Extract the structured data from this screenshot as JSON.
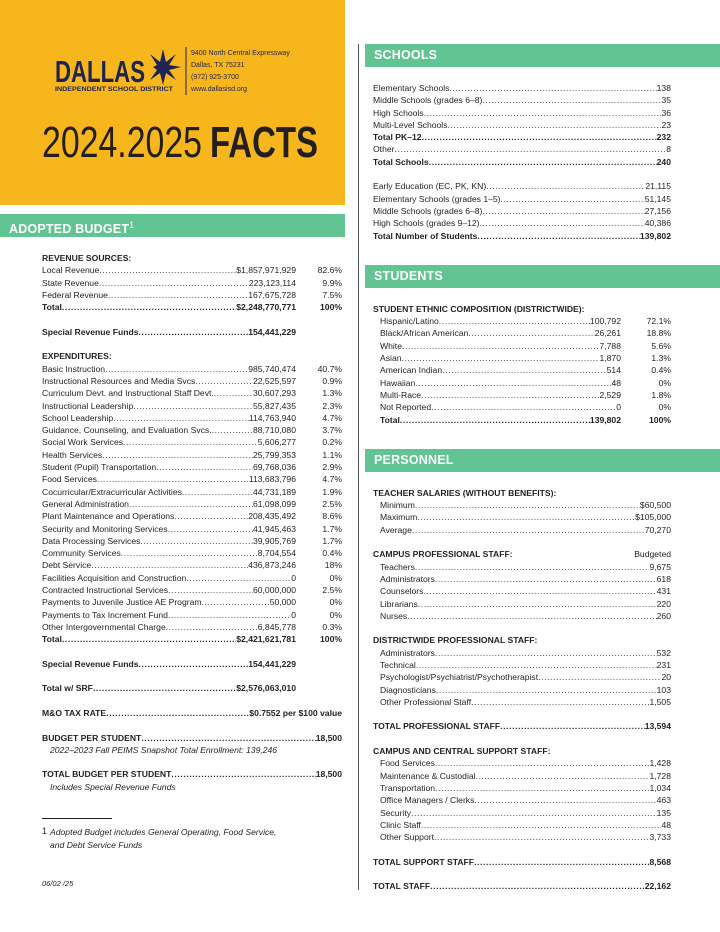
{
  "header": {
    "logo_name": "DALLAS",
    "logo_sub": "INDEPENDENT SCHOOL DISTRICT",
    "address": [
      "9400 North Central Expressway",
      "Dallas, TX 75231",
      "(972) 925-3700",
      "www.dallasisd.org"
    ],
    "title_year": "2024.2025",
    "title_word": "FACTS"
  },
  "budget": {
    "heading": "ADOPTED BUDGET",
    "footnote_mark": "1",
    "blocks": [
      {
        "title": "REVENUE SOURCES:",
        "rows": [
          {
            "label": "Local Revenue",
            "value": "$1,857,971,929",
            "pct": "82.6%"
          },
          {
            "label": "State Revenue",
            "value": "223,123,114",
            "pct": "9.9%"
          },
          {
            "label": "Federal Revenue",
            "value": "167,675,728",
            "pct": "7.5%"
          },
          {
            "label": "Total",
            "value": "$2,248,770,771",
            "pct": "100%",
            "bold": true
          }
        ]
      },
      {
        "rows": [
          {
            "label": "Special Revenue Funds",
            "value": "154,441,229",
            "bold": true
          }
        ]
      },
      {
        "title": "EXPENDITURES:",
        "rows": [
          {
            "label": "Basic Instruction",
            "value": "985,740,474",
            "pct": "40.7%"
          },
          {
            "label": "Instructional Resources and Media Svcs",
            "value": "22,525,597",
            "pct": "0.9%"
          },
          {
            "label": "Curriculum Devt. and Instructional Staff Devt.",
            "value": "30,607,293",
            "pct": "1.3%"
          },
          {
            "label": "Instructional Leadership",
            "value": "55,827,435",
            "pct": "2.3%"
          },
          {
            "label": "School Leadership",
            "value": "114,763,940",
            "pct": "4.7%"
          },
          {
            "label": "Guidance, Counseling, and Evaluation Svcs.",
            "value": "88,710,080",
            "pct": "3.7%"
          },
          {
            "label": "Social Work Services",
            "value": "5,606,277",
            "pct": "0.2%"
          },
          {
            "label": "Health Services",
            "value": "25,799,353",
            "pct": "1.1%"
          },
          {
            "label": "Student (Pupil) Transportation",
            "value": "69,768,036",
            "pct": "2.9%"
          },
          {
            "label": "Food Services",
            "value": "113,683,796",
            "pct": "4.7%"
          },
          {
            "label": "Cocurricular/Extracurricular Activities",
            "value": "44,731,189",
            "pct": "1.9%"
          },
          {
            "label": "General Administration",
            "value": "61,098,099",
            "pct": "2.5%"
          },
          {
            "label": "Plant Maintenance and Operations",
            "value": "208,435,492",
            "pct": "8.6%"
          },
          {
            "label": "Security and Monitoring Services",
            "value": "41,945,463",
            "pct": "1.7%"
          },
          {
            "label": "Data Processing Services",
            "value": "39,905,769",
            "pct": "1.7%"
          },
          {
            "label": "Community Services",
            "value": "8,704,554",
            "pct": "0.4%"
          },
          {
            "label": "Debt Service",
            "value": "436,873,246",
            "pct": "18%"
          },
          {
            "label": "Facilities Acquisition and Construction",
            "value": "0",
            "pct": "0%"
          },
          {
            "label": "Contracted Instructional Services",
            "value": "60,000,000",
            "pct": "2.5%"
          },
          {
            "label": "Payments to Juvenile Justice AE Program",
            "value": "50,000",
            "pct": "0%"
          },
          {
            "label": "Payments to Tax Increment Fund",
            "value": "0",
            "pct": "0%"
          },
          {
            "label": "Other Intergovernmental Charge",
            "value": "6,845,778",
            "pct": "0.3%"
          },
          {
            "label": "Total",
            "value": "$2,421,621,781",
            "pct": "100%",
            "bold": true
          }
        ]
      },
      {
        "rows": [
          {
            "label": "Special Revenue Funds",
            "value": "154,441,229",
            "bold": true
          }
        ]
      },
      {
        "rows": [
          {
            "label": "Total w/ SRF",
            "value": "$2,576,063,010",
            "bold": true
          }
        ]
      },
      {
        "rows": [
          {
            "label": "M&O TAX RATE",
            "value": "$0.7552 per $100 value",
            "bold": true,
            "full": true
          }
        ]
      },
      {
        "rows": [
          {
            "label": "BUDGET PER STUDENT",
            "value": "18,500",
            "bold": true,
            "full": true
          }
        ],
        "note": "2022–2023 Fall PEIMS Snapshot Total Enrollment: 139,246"
      },
      {
        "rows": [
          {
            "label": "TOTAL BUDGET PER STUDENT",
            "value": "18,500",
            "bold": true,
            "full": true
          }
        ],
        "note": "Includes Special Revenue Funds"
      }
    ],
    "footnote": {
      "mark": "1",
      "lines": [
        "Adopted Budget includes General Operating, Food Service,",
        "and Debt Service Funds"
      ]
    }
  },
  "date": "06/02 /25",
  "sections": [
    {
      "heading": "SCHOOLS",
      "blocks": [
        {
          "rows": [
            {
              "label": "Elementary Schools",
              "value": "138"
            },
            {
              "label": "Middle Schools (grades 6–8)",
              "value": "35"
            },
            {
              "label": "High Schools",
              "value": "36"
            },
            {
              "label": "Multi-Level Schools",
              "value": "23"
            },
            {
              "label": "Total PK–12",
              "value": "232",
              "bold": true
            },
            {
              "label": "Other",
              "value": "8"
            },
            {
              "label": "Total Schools",
              "value": "240",
              "bold": true
            }
          ]
        },
        {
          "rows": [
            {
              "label": "Early Education (EC, PK, KN)",
              "value": "21,115"
            },
            {
              "label": "Elementary Schools (grades 1–5)",
              "value": "51,145"
            },
            {
              "label": "Middle Schools (grades 6–8)",
              "value": "27,156"
            },
            {
              "label": "High Schools (grades 9–12)",
              "value": "40,386"
            },
            {
              "label": "Total Number of Students",
              "value": "139,802",
              "bold": true
            }
          ]
        }
      ]
    },
    {
      "heading": "STUDENTS",
      "blocks": [
        {
          "title": "STUDENT ETHNIC COMPOSITION (DISTRICTWIDE):",
          "indent": true,
          "rows": [
            {
              "label": "Hispanic/Latino",
              "value": "100,792",
              "pct": "72.1%"
            },
            {
              "label": "Black/African American",
              "value": "26,261",
              "pct": "18.8%"
            },
            {
              "label": "White",
              "value": "7,788",
              "pct": "5.6%"
            },
            {
              "label": "Asian",
              "value": "1,870",
              "pct": "1.3%"
            },
            {
              "label": "American Indian",
              "value": "514",
              "pct": "0.4%"
            },
            {
              "label": "Hawaiian",
              "value": "48",
              "pct": "0%"
            },
            {
              "label": "Multi-Race",
              "value": "2,529",
              "pct": "1.8%"
            },
            {
              "label": "Not Reported",
              "value": "0",
              "pct": "0%"
            },
            {
              "label": "Total",
              "value": "139,802",
              "pct": "100%",
              "bold": true
            }
          ]
        }
      ]
    },
    {
      "heading": "PERSONNEL",
      "blocks": [
        {
          "title": "TEACHER SALARIES (WITHOUT BENEFITS):",
          "indent": true,
          "rows": [
            {
              "label": "Minimum",
              "value": "$60,500"
            },
            {
              "label": "Maximum",
              "value": "$105,000"
            },
            {
              "label": "Average",
              "value": "70,270"
            }
          ]
        },
        {
          "title": "CAMPUS PROFESSIONAL STAFF:",
          "title_right": "Budgeted",
          "indent": true,
          "rows": [
            {
              "label": "Teachers",
              "value": "9,675"
            },
            {
              "label": "Administrators",
              "value": "618"
            },
            {
              "label": "Counselors",
              "value": "431"
            },
            {
              "label": "Librarians",
              "value": "220"
            },
            {
              "label": "Nurses",
              "value": "260"
            }
          ]
        },
        {
          "title": "DISTRICTWIDE PROFESSIONAL STAFF:",
          "indent": true,
          "rows": [
            {
              "label": "Administrators",
              "value": "532"
            },
            {
              "label": "Technical",
              "value": "231"
            },
            {
              "label": "Psychologist/Psychiatrist/Psychotherapist",
              "value": "20"
            },
            {
              "label": "Diagnosticians",
              "value": "103"
            },
            {
              "label": "Other Professional Staff",
              "value": "1,505"
            }
          ]
        },
        {
          "rows": [
            {
              "label": "TOTAL PROFESSIONAL STAFF",
              "value": "13,594",
              "bold": true
            }
          ]
        },
        {
          "title": "CAMPUS AND CENTRAL SUPPORT STAFF:",
          "indent": true,
          "rows": [
            {
              "label": "Food Services",
              "value": "1,428"
            },
            {
              "label": "Maintenance & Custodial",
              "value": "1,728"
            },
            {
              "label": "Transportation",
              "value": "1,034"
            },
            {
              "label": "Office Managers / Clerks",
              "value": "463"
            },
            {
              "label": "Security",
              "value": "135"
            },
            {
              "label": "Clinic Staff",
              "value": "48"
            },
            {
              "label": "Other Support",
              "value": "3,733"
            }
          ]
        },
        {
          "rows": [
            {
              "label": "TOTAL SUPPORT STAFF",
              "value": "8,568",
              "bold": true
            }
          ]
        },
        {
          "rows": [
            {
              "label": "TOTAL STAFF",
              "value": "22,162",
              "bold": true
            }
          ]
        }
      ]
    }
  ]
}
